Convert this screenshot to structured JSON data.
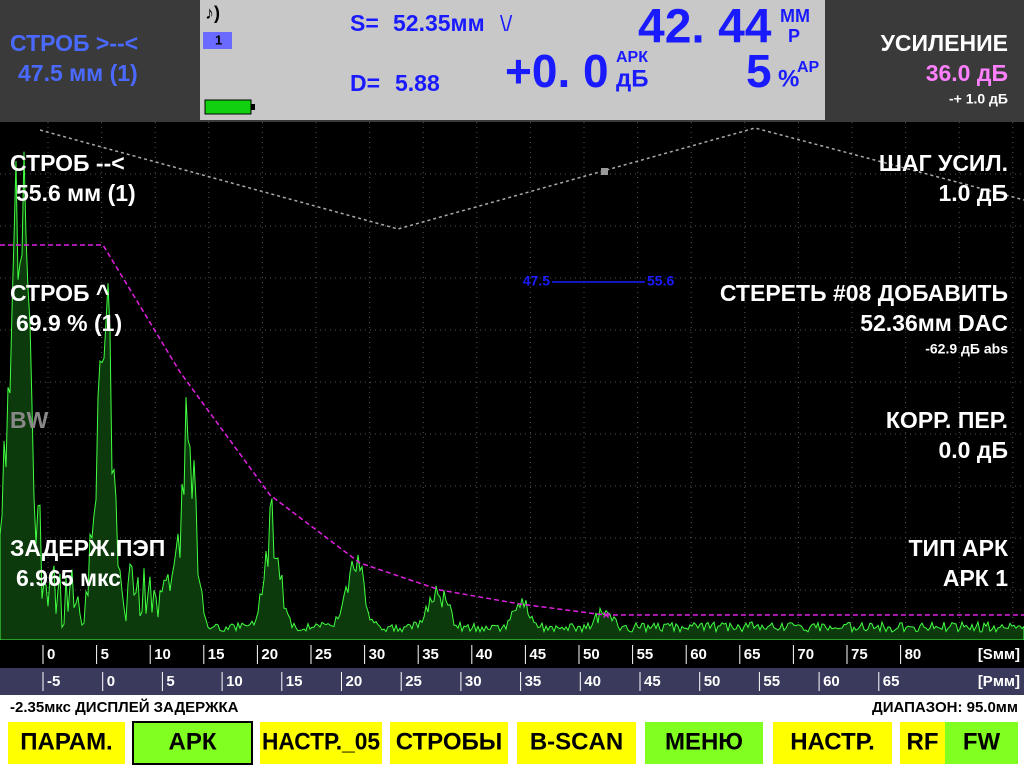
{
  "top": {
    "gate_a": [
      "СТРОБ >--<",
      "47.5 мм (1)"
    ],
    "sound": "♪)",
    "channel": "1",
    "s_label": "S=",
    "s_value": "52.35мм",
    "s_mark": "\\/",
    "main_value": "42. 44",
    "main_unit": "ММ",
    "main_sub": "Р",
    "d_label": "D=",
    "d_value": "5.88",
    "dac_value": "+0. 0",
    "dac_unit_top": "АРК",
    "dac_unit": "дБ",
    "percent_value": "5",
    "percent_unit": "%",
    "percent_sub": "АР",
    "gain_title": "УСИЛЕНИЕ",
    "gain_value": "36.0 дБ",
    "gain_step": "-+ 1.0 дБ"
  },
  "left_menu": [
    [
      "СТРОБ --<",
      "55.6 мм (1)"
    ],
    [
      "СТРОБ ^",
      "69.9 % (1)"
    ],
    [
      "BW"
    ],
    [
      "ЗАДЕРЖ.ПЭП",
      "6.965 мкс"
    ]
  ],
  "right_menu": [
    [
      "ШАГ УСИЛ.",
      "1.0 дБ"
    ],
    [
      "СТЕРЕТЬ #08 ДОБАВИТЬ",
      "52.36мм DAC",
      "-62.9 дБ abs"
    ],
    [
      "КОРР. ПЕР.",
      "0.0 дБ"
    ],
    [
      "ТИП АРК",
      "АРК 1"
    ]
  ],
  "gate_markers": [
    "47.5",
    "55.6"
  ],
  "scale_s": {
    "ticks": [
      0,
      5,
      10,
      15,
      20,
      25,
      30,
      35,
      40,
      45,
      50,
      55,
      60,
      65,
      70,
      75,
      80
    ],
    "unit": "[Sмм]"
  },
  "scale_r": {
    "ticks": [
      -5,
      0,
      5,
      10,
      15,
      20,
      25,
      30,
      35,
      40,
      45,
      50,
      55,
      60,
      65
    ],
    "unit": "[Рмм]"
  },
  "status": {
    "left": "-2.35мкс  ДИСПЛЕЙ ЗАДЕРЖКА",
    "right": "ДИАПАЗОН:  95.0мм"
  },
  "buttons": [
    "ПАРАМ.",
    "АРК",
    "НАСТР._05",
    "СТРОБЫ",
    "B-SCAN",
    "МЕНЮ",
    "НАСТР.",
    "RF",
    "FW"
  ]
}
